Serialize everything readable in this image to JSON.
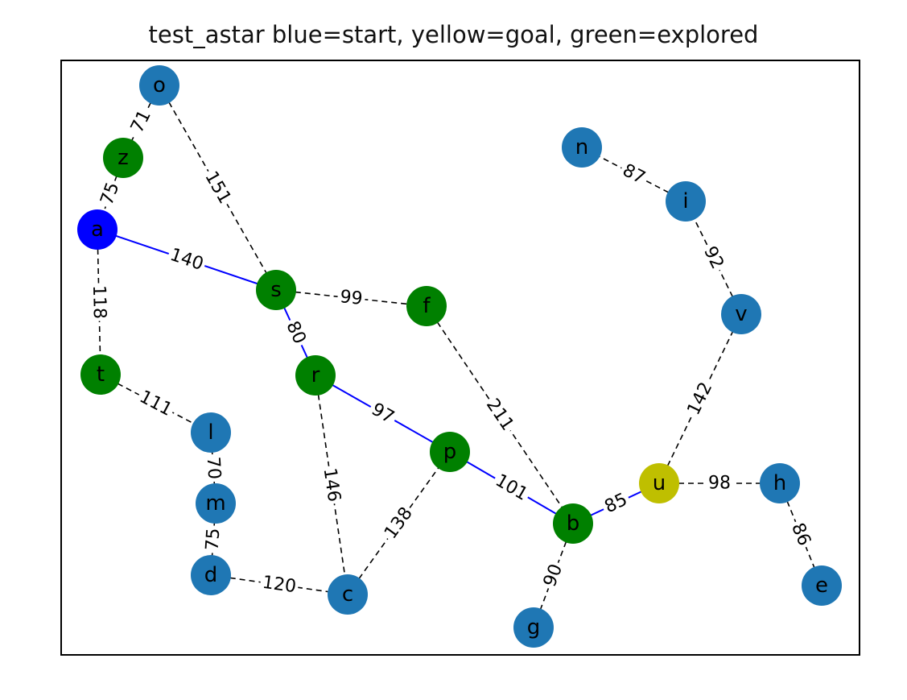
{
  "title": "test_astar blue=start, yellow=goal, green=explored",
  "colors": {
    "start": "#0000ff",
    "goal": "#bfbf00",
    "explored": "#008000",
    "unexplored": "#1f77b4",
    "path_edge": "#0000ff",
    "other_edge": "#000000"
  },
  "nodes": [
    {
      "id": "o",
      "state": "unexplored"
    },
    {
      "id": "z",
      "state": "explored"
    },
    {
      "id": "a",
      "state": "start"
    },
    {
      "id": "t",
      "state": "explored"
    },
    {
      "id": "s",
      "state": "explored"
    },
    {
      "id": "f",
      "state": "explored"
    },
    {
      "id": "r",
      "state": "explored"
    },
    {
      "id": "l",
      "state": "unexplored"
    },
    {
      "id": "m",
      "state": "unexplored"
    },
    {
      "id": "d",
      "state": "unexplored"
    },
    {
      "id": "c",
      "state": "unexplored"
    },
    {
      "id": "p",
      "state": "explored"
    },
    {
      "id": "b",
      "state": "explored"
    },
    {
      "id": "g",
      "state": "unexplored"
    },
    {
      "id": "u",
      "state": "goal"
    },
    {
      "id": "h",
      "state": "unexplored"
    },
    {
      "id": "e",
      "state": "unexplored"
    },
    {
      "id": "n",
      "state": "unexplored"
    },
    {
      "id": "i",
      "state": "unexplored"
    },
    {
      "id": "v",
      "state": "unexplored"
    }
  ],
  "edges": [
    {
      "from": "o",
      "to": "z",
      "weight": "71",
      "on_path": false
    },
    {
      "from": "o",
      "to": "s",
      "weight": "151",
      "on_path": false
    },
    {
      "from": "z",
      "to": "a",
      "weight": "75",
      "on_path": false
    },
    {
      "from": "a",
      "to": "s",
      "weight": "140",
      "on_path": true
    },
    {
      "from": "a",
      "to": "t",
      "weight": "118",
      "on_path": false
    },
    {
      "from": "s",
      "to": "f",
      "weight": "99",
      "on_path": false
    },
    {
      "from": "s",
      "to": "r",
      "weight": "80",
      "on_path": true
    },
    {
      "from": "t",
      "to": "l",
      "weight": "111",
      "on_path": false
    },
    {
      "from": "l",
      "to": "m",
      "weight": "70",
      "on_path": false
    },
    {
      "from": "m",
      "to": "d",
      "weight": "75",
      "on_path": false
    },
    {
      "from": "d",
      "to": "c",
      "weight": "120",
      "on_path": false
    },
    {
      "from": "r",
      "to": "c",
      "weight": "146",
      "on_path": false
    },
    {
      "from": "r",
      "to": "p",
      "weight": "97",
      "on_path": true
    },
    {
      "from": "c",
      "to": "p",
      "weight": "138",
      "on_path": false
    },
    {
      "from": "p",
      "to": "b",
      "weight": "101",
      "on_path": true
    },
    {
      "from": "f",
      "to": "b",
      "weight": "211",
      "on_path": false
    },
    {
      "from": "b",
      "to": "g",
      "weight": "90",
      "on_path": false
    },
    {
      "from": "b",
      "to": "u",
      "weight": "85",
      "on_path": true
    },
    {
      "from": "u",
      "to": "h",
      "weight": "98",
      "on_path": false
    },
    {
      "from": "u",
      "to": "v",
      "weight": "142",
      "on_path": false
    },
    {
      "from": "h",
      "to": "e",
      "weight": "86",
      "on_path": false
    },
    {
      "from": "v",
      "to": "i",
      "weight": "92",
      "on_path": false
    },
    {
      "from": "i",
      "to": "n",
      "weight": "87",
      "on_path": false
    }
  ]
}
